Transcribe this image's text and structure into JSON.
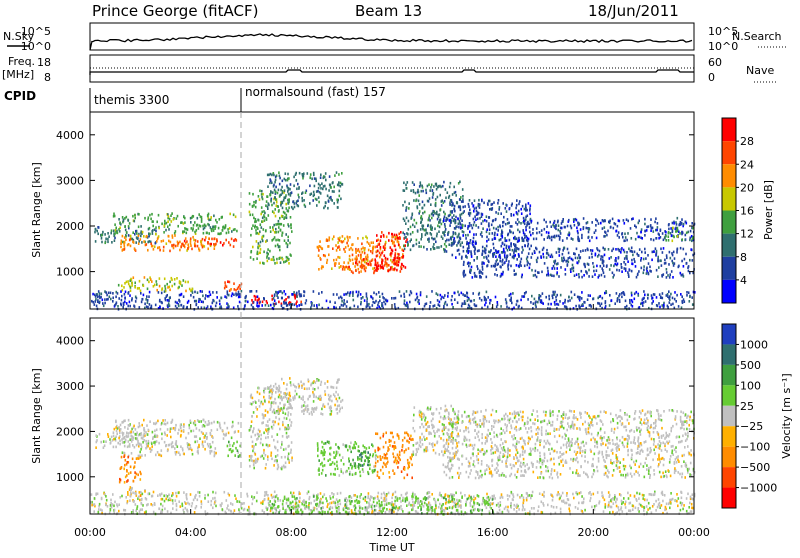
{
  "header": {
    "station": "Prince George (fitACF)",
    "beam": "Beam 13",
    "date": "18/Jun/2011"
  },
  "side_labels": {
    "nsky": "N.Sky",
    "nsearch": "N.Search",
    "freq_top": "Freq.",
    "freq_unit": "[MHz]",
    "nave": "Nave",
    "cpid": "CPID"
  },
  "noise_panel": {
    "left_ticks": [
      "10^5",
      "10^0"
    ],
    "right_ticks": [
      "10^5",
      "10^0"
    ]
  },
  "freq_panel": {
    "left_ticks": [
      "18",
      "8"
    ],
    "right_ticks": [
      "60",
      "0"
    ]
  },
  "cpid_panel": {
    "segments": [
      {
        "label": "themis 3300",
        "start_hour": 0.0
      },
      {
        "label": "normalsound (fast) 157",
        "start_hour": 6.0
      }
    ]
  },
  "chart_data": [
    {
      "type": "heatmap",
      "name": "power",
      "xlabel": "",
      "ylabel": "Slant Range [km]",
      "xlim": [
        0,
        24
      ],
      "ylim": [
        180,
        4500
      ],
      "yticks": [
        "1000",
        "2000",
        "3000",
        "4000"
      ],
      "colorbar_label": "Power [dB]",
      "colorbar_ticks": [
        "4",
        "8",
        "12",
        "16",
        "20",
        "24",
        "28"
      ],
      "colorbar_colors": [
        "#0000ff",
        "#1f3fa0",
        "#2f6f6f",
        "#3f9f3f",
        "#c8c800",
        "#ff8c00",
        "#ff4500",
        "#ff0000"
      ],
      "features": [
        {
          "t0": 0.1,
          "t1": 2.6,
          "r0": 1650,
          "r1": 2000,
          "level": 2
        },
        {
          "t0": 0.9,
          "t1": 5.9,
          "r0": 1850,
          "r1": 2300,
          "level": 3
        },
        {
          "t0": 1.2,
          "t1": 5.0,
          "r0": 1480,
          "r1": 1820,
          "level": 5
        },
        {
          "t0": 3.1,
          "t1": 5.8,
          "r0": 1550,
          "r1": 1750,
          "level": 6
        },
        {
          "t0": 1.0,
          "t1": 4.1,
          "r0": 600,
          "r1": 900,
          "level": 4
        },
        {
          "t0": 5.2,
          "t1": 6.0,
          "r0": 600,
          "r1": 850,
          "level": 6
        },
        {
          "t0": 6.4,
          "t1": 8.4,
          "r0": 300,
          "r1": 520,
          "level": 7
        },
        {
          "t0": 6.3,
          "t1": 8.0,
          "r0": 1200,
          "r1": 2800,
          "level": 3
        },
        {
          "t0": 7.0,
          "t1": 10.0,
          "r0": 2400,
          "r1": 3200,
          "level": 2
        },
        {
          "t0": 9.0,
          "t1": 12.4,
          "r0": 1050,
          "r1": 1800,
          "level": 5
        },
        {
          "t0": 10.0,
          "t1": 12.3,
          "r0": 1000,
          "r1": 1300,
          "level": 6
        },
        {
          "t0": 11.3,
          "t1": 12.6,
          "r0": 1050,
          "r1": 1900,
          "level": 7
        },
        {
          "t0": 12.4,
          "t1": 14.8,
          "r0": 1500,
          "r1": 3000,
          "level": 2
        },
        {
          "t0": 14.0,
          "t1": 17.5,
          "r0": 1300,
          "r1": 2600,
          "level": 1
        },
        {
          "t0": 14.8,
          "t1": 24.0,
          "r0": 900,
          "r1": 1550,
          "level": 1
        },
        {
          "t0": 17.0,
          "t1": 24.0,
          "r0": 1700,
          "r1": 2200,
          "level": 1
        },
        {
          "t0": 22.8,
          "t1": 24.0,
          "r0": 1700,
          "r1": 2000,
          "level": 3
        },
        {
          "t0": 0.0,
          "t1": 24.0,
          "r0": 200,
          "r1": 600,
          "level": 1
        }
      ]
    },
    {
      "type": "heatmap",
      "name": "velocity",
      "xlabel": "Time UT",
      "ylabel": "Slant Range [km]",
      "xlim": [
        0,
        24
      ],
      "ylim": [
        180,
        4500
      ],
      "yticks": [
        "1000",
        "2000",
        "3000",
        "4000"
      ],
      "xticks": [
        "00:00",
        "04:00",
        "08:00",
        "12:00",
        "16:00",
        "20:00",
        "00:00"
      ],
      "colorbar_label": "Velocity [m s⁻¹]",
      "colorbar_ticks": [
        "1000",
        "500",
        "100",
        "25",
        "−25",
        "−100",
        "−500",
        "−1000"
      ],
      "colorbar_colors": [
        "#1f3fbf",
        "#2f6f6f",
        "#3f9f3f",
        "#66cc33",
        "#c0c0c0",
        "#ffb000",
        "#ff8c00",
        "#ff4500",
        "#ff0000"
      ],
      "features": [
        {
          "t0": 0.1,
          "t1": 2.6,
          "r0": 1650,
          "r1": 2000,
          "level": 4
        },
        {
          "t0": 0.9,
          "t1": 5.9,
          "r0": 1850,
          "r1": 2300,
          "level": 4
        },
        {
          "t0": 1.2,
          "t1": 5.0,
          "r0": 1480,
          "r1": 1820,
          "level": 4
        },
        {
          "t0": 1.1,
          "t1": 2.0,
          "r0": 900,
          "r1": 1500,
          "level": 6
        },
        {
          "t0": 1.2,
          "t1": 2.2,
          "r0": 600,
          "r1": 800,
          "level": 5
        },
        {
          "t0": 5.4,
          "t1": 6.0,
          "r0": 1450,
          "r1": 1900,
          "level": 3
        },
        {
          "t0": 6.3,
          "t1": 8.0,
          "r0": 1200,
          "r1": 3000,
          "level": 4
        },
        {
          "t0": 7.0,
          "t1": 10.0,
          "r0": 2400,
          "r1": 3200,
          "level": 4
        },
        {
          "t0": 9.0,
          "t1": 11.4,
          "r0": 1050,
          "r1": 1800,
          "level": 3
        },
        {
          "t0": 10.2,
          "t1": 11.2,
          "r0": 1200,
          "r1": 1600,
          "level": 2
        },
        {
          "t0": 11.3,
          "t1": 12.8,
          "r0": 1000,
          "r1": 2000,
          "level": 6
        },
        {
          "t0": 12.8,
          "t1": 14.6,
          "r0": 1500,
          "r1": 2600,
          "level": 4
        },
        {
          "t0": 14.0,
          "t1": 24.0,
          "r0": 1000,
          "r1": 2500,
          "level": 4
        },
        {
          "t0": 0.0,
          "t1": 24.0,
          "r0": 200,
          "r1": 700,
          "level": 4
        },
        {
          "t0": 7.0,
          "t1": 16.0,
          "r0": 200,
          "r1": 600,
          "level": 3
        }
      ]
    }
  ]
}
